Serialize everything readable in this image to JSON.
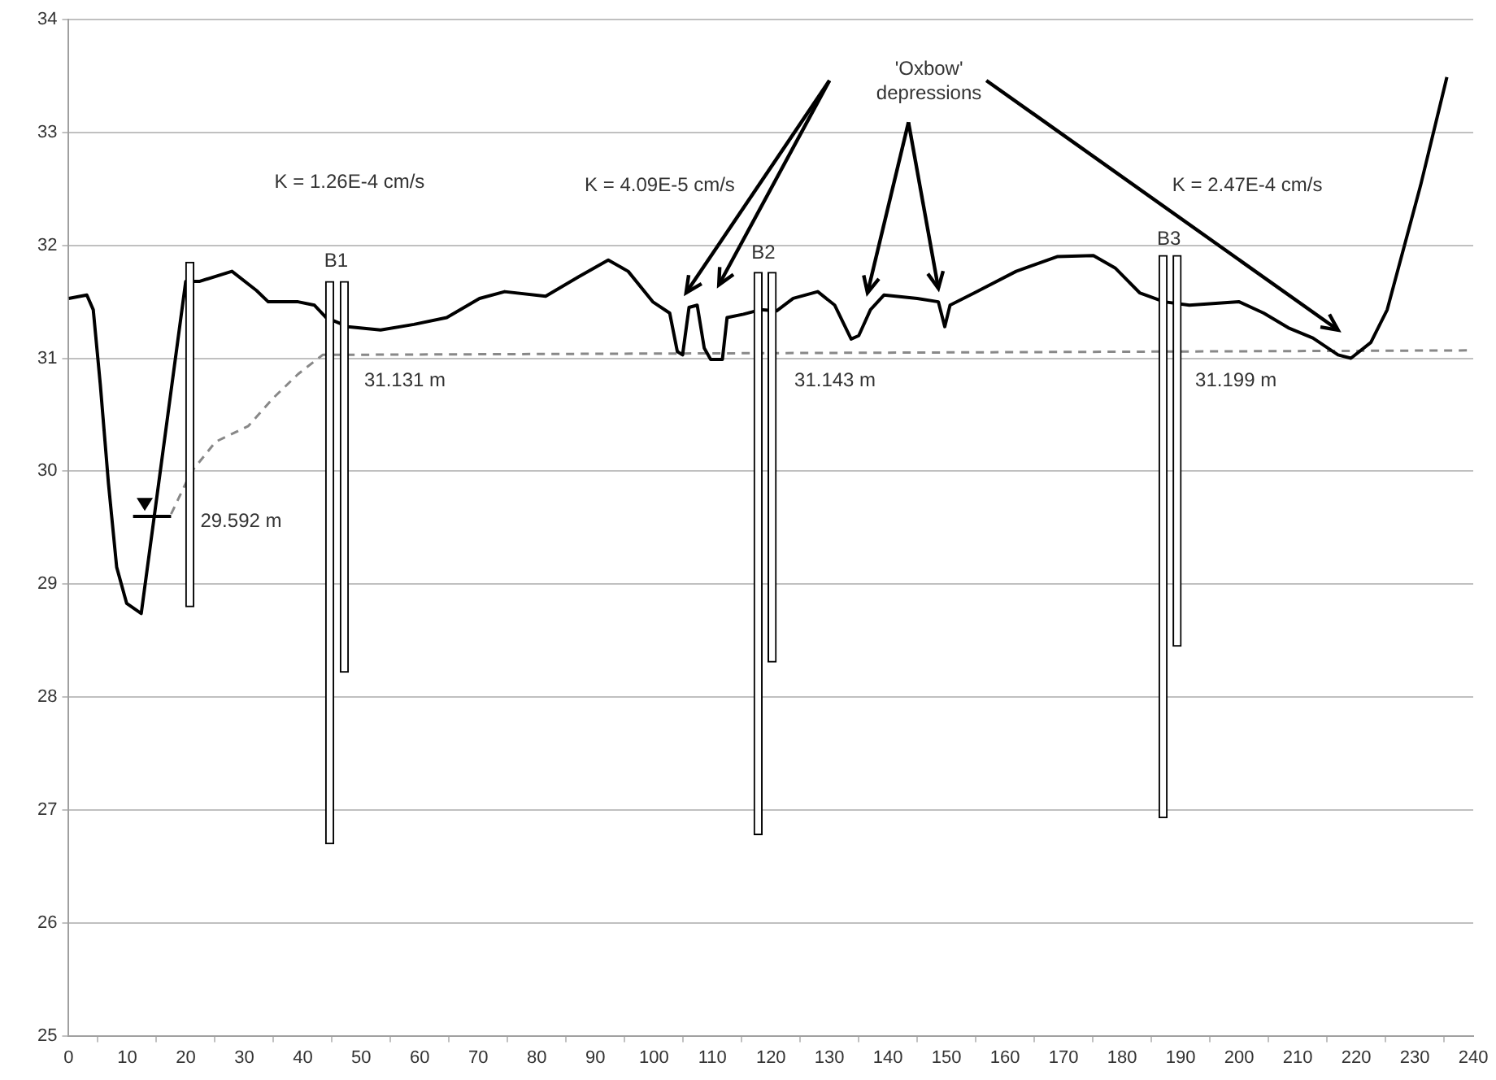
{
  "chart_data": {
    "type": "line",
    "xlim": [
      0,
      240
    ],
    "xticks": [
      0,
      10,
      20,
      30,
      40,
      50,
      60,
      70,
      80,
      90,
      100,
      110,
      120,
      130,
      140,
      150,
      160,
      170,
      180,
      190,
      200,
      210,
      220,
      230,
      240
    ],
    "ylim": [
      25,
      34
    ],
    "yticks": [
      25,
      26,
      27,
      28,
      29,
      30,
      31,
      32,
      33,
      34
    ],
    "grid": "y",
    "legend": false,
    "marker": "none",
    "series": [
      {
        "color": "#000000",
        "line_style": "solid",
        "x": [
          0,
          3.1,
          4.2,
          5.4,
          6.8,
          8.2,
          9.9,
          12.4,
          20,
          22.3,
          27.9,
          32.1,
          34.1,
          39.2,
          42,
          44,
          47.7,
          53.3,
          59,
          64.6,
          70.2,
          74.5,
          81.5,
          87.1,
          92.2,
          95.6,
          99.8,
          102.7,
          104,
          104.9,
          106,
          107.4,
          108.6,
          109.7,
          111.7,
          112.5,
          115.3,
          118.2,
          121,
          123.8,
          128,
          130.9,
          133.7,
          135,
          137,
          139.3,
          145,
          148.6,
          149.7,
          150.6,
          154.8,
          161.9,
          168.9,
          175.1,
          178.8,
          183,
          187.2,
          191.5,
          200,
          204.2,
          208.4,
          212.6,
          216.9,
          219.1,
          222.5,
          225.3,
          231,
          235.5
        ],
        "values": [
          31.53,
          31.56,
          31.43,
          30.77,
          29.89,
          29.15,
          28.83,
          28.74,
          31.68,
          31.68,
          31.77,
          31.6,
          31.5,
          31.5,
          31.47,
          31.36,
          31.28,
          31.25,
          31.3,
          31.36,
          31.53,
          31.59,
          31.55,
          31.72,
          31.87,
          31.77,
          31.5,
          31.4,
          31.06,
          31.03,
          31.45,
          31.47,
          31.09,
          30.99,
          30.99,
          31.36,
          31.39,
          31.43,
          31.42,
          31.53,
          31.59,
          31.47,
          31.17,
          31.2,
          31.43,
          31.56,
          31.53,
          31.5,
          31.28,
          31.47,
          31.58,
          31.77,
          31.9,
          31.91,
          31.8,
          31.58,
          31.5,
          31.47,
          31.5,
          31.4,
          31.27,
          31.18,
          31.03,
          31.0,
          31.14,
          31.43,
          32.53,
          33.49
        ]
      },
      {
        "color": "#888888",
        "line_style": "dashed",
        "x": [
          17.5,
          20.9,
          25.1,
          30.7,
          35,
          39.2,
          43.4,
          240
        ],
        "values": [
          29.62,
          29.99,
          30.26,
          30.4,
          30.65,
          30.86,
          31.03,
          31.07
        ]
      },
      {
        "color": "#000000",
        "line_style": "solid",
        "x": [
          11,
          17.5
        ],
        "values": [
          29.6,
          29.6
        ]
      },
      {
        "type": "bar",
        "color": "#ffffff",
        "x": [
          20.7,
          44.6,
          47.1,
          117.8,
          120.2,
          187,
          189.4
        ],
        "base": [
          28.8,
          26.7,
          28.22,
          26.78,
          28.31,
          26.93,
          28.45
        ],
        "values": [
          3.05,
          4.98,
          3.46,
          4.98,
          3.45,
          4.98,
          3.46
        ]
      }
    ],
    "annotations": [
      "K = 1.26E-4 cm/s",
      "K = 4.09E-5 cm/s",
      "K = 2.47E-4 cm/s",
      "'Oxbow'\ndepressions",
      "B1",
      "B2",
      "B3",
      "31.131 m",
      "31.143 m",
      "31.199 m",
      "29.592 m"
    ]
  }
}
